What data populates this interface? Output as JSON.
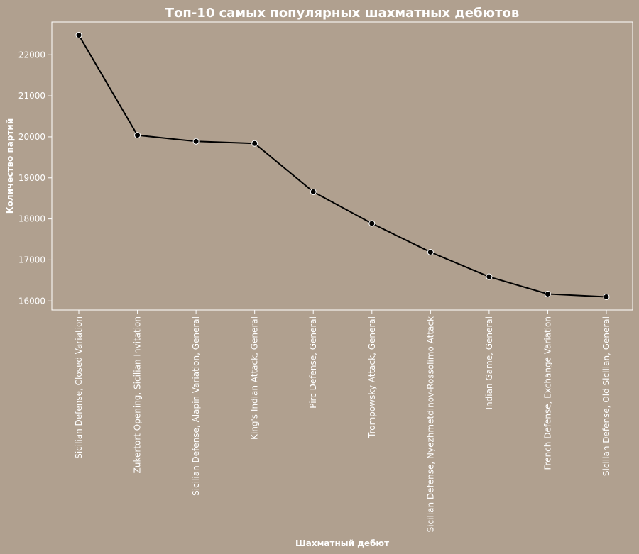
{
  "colors": {
    "background": "#b0a08f",
    "text": "#ffffff",
    "line": "#000000",
    "marker_edge": "#ffffff"
  },
  "chart_data": {
    "type": "line",
    "title": "Топ-10 самых популярных шахматных дебютов",
    "xlabel": "Шахматный дебют",
    "ylabel": "Количество партий",
    "ylim": [
      15780,
      22800
    ],
    "yticks": [
      16000,
      17000,
      18000,
      19000,
      20000,
      21000,
      22000
    ],
    "grid": false,
    "categories": [
      "Sicilian Defense, Closed Variation",
      "Zukertort Opening, Sicilian Invitation",
      "Sicilian Defense, Alapin Variation, General",
      "King's Indian Attack, General",
      "Pirc Defense, General",
      "Trompowsky Attack, General",
      "Sicilian Defense, Nyezhmetdinov-Rossolimo Attack",
      "Indian Game, General",
      "French Defense, Exchange Variation",
      "Sicilian Defense, Old Sicilian, General"
    ],
    "values": [
      22480,
      20040,
      19890,
      19840,
      18660,
      17890,
      17190,
      16590,
      16170,
      16100
    ]
  }
}
